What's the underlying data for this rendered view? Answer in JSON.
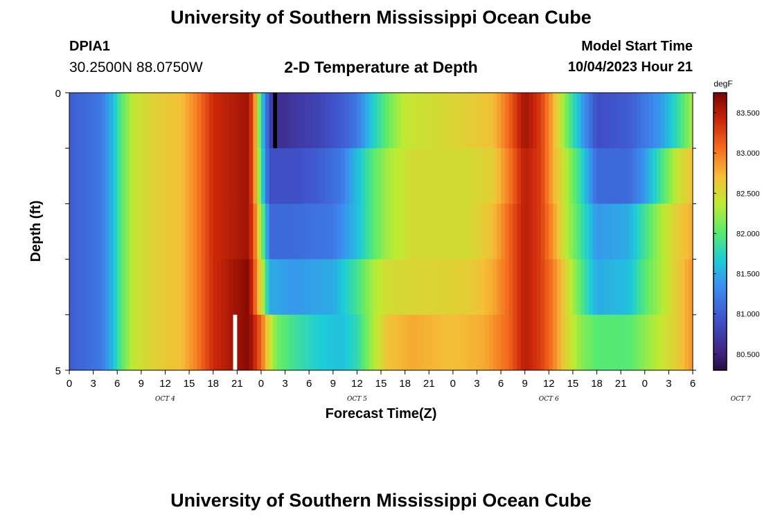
{
  "header": {
    "title": "University of Southern Mississippi Ocean Cube",
    "station": {
      "name": "DPIA1",
      "coords": "30.2500N  88.0750W"
    },
    "model_start_label": "Model Start Time",
    "model_start_value": "10/04/2023 Hour 21"
  },
  "footer": {
    "title": "University of Southern Mississippi Ocean Cube"
  },
  "chart_data": {
    "type": "heatmap",
    "title": "2-D Temperature at Depth",
    "xlabel": "Forecast Time(Z)",
    "ylabel": "Depth (ft)",
    "x_tick_labels": [
      "0",
      "3",
      "6",
      "9",
      "12",
      "15",
      "18",
      "21",
      "0",
      "3",
      "6",
      "9",
      "12",
      "15",
      "18",
      "21",
      "0",
      "3",
      "6",
      "9",
      "12",
      "15",
      "18",
      "21",
      "0",
      "3",
      "6"
    ],
    "date_labels": [
      {
        "label": "OCT 4",
        "hour": 12
      },
      {
        "label": "OCT 5",
        "hour": 36
      },
      {
        "label": "OCT 6",
        "hour": 60
      },
      {
        "label": "OCT 7",
        "hour": 84
      }
    ],
    "x_range_hours": [
      0,
      78
    ],
    "y_tick_labels": [
      "0",
      "5"
    ],
    "ylim": [
      0,
      5
    ],
    "depth_levels": 5,
    "colorbar": {
      "unit": "degF",
      "min": 80.3,
      "max": 83.75,
      "tick_labels": [
        "80.500",
        "81.000",
        "81.500",
        "82.000",
        "82.500",
        "83.000",
        "83.500"
      ],
      "tick_values": [
        80.5,
        81.0,
        81.5,
        82.0,
        82.5,
        83.0,
        83.5
      ]
    },
    "temperature_keypoints": [
      {
        "depth": 0,
        "points": [
          [
            0,
            81.0
          ],
          [
            4,
            81.2
          ],
          [
            5.5,
            81.6
          ],
          [
            6.5,
            82.0
          ],
          [
            8,
            82.4
          ],
          [
            11,
            82.6
          ],
          [
            14,
            82.7
          ],
          [
            16,
            83.0
          ],
          [
            18,
            83.4
          ],
          [
            22.5,
            83.6
          ],
          [
            23.5,
            82.6
          ],
          [
            24,
            81.7
          ],
          [
            24.5,
            81.4
          ],
          [
            25,
            80.8
          ],
          [
            26.5,
            80.6
          ],
          [
            28,
            80.7
          ],
          [
            31,
            80.8
          ],
          [
            34,
            81.0
          ],
          [
            36,
            81.2
          ],
          [
            38,
            81.7
          ],
          [
            40,
            82.1
          ],
          [
            42,
            82.4
          ],
          [
            46,
            82.5
          ],
          [
            50,
            82.6
          ],
          [
            53,
            82.7
          ],
          [
            55,
            83.1
          ],
          [
            57,
            83.6
          ],
          [
            59,
            83.3
          ],
          [
            60.5,
            82.8
          ],
          [
            62,
            82.2
          ],
          [
            64,
            81.5
          ],
          [
            66,
            80.9
          ],
          [
            70,
            81.0
          ],
          [
            72,
            81.2
          ],
          [
            74,
            81.4
          ],
          [
            76,
            81.8
          ],
          [
            78,
            82.3
          ]
        ]
      },
      {
        "depth": 1,
        "points": [
          [
            0,
            81.0
          ],
          [
            4,
            81.2
          ],
          [
            5.5,
            81.6
          ],
          [
            6.5,
            82.0
          ],
          [
            8,
            82.4
          ],
          [
            11,
            82.6
          ],
          [
            14,
            82.7
          ],
          [
            16,
            83.0
          ],
          [
            18,
            83.4
          ],
          [
            22.5,
            83.6
          ],
          [
            23.5,
            82.6
          ],
          [
            24,
            81.9
          ],
          [
            24.5,
            81.4
          ],
          [
            25,
            80.9
          ],
          [
            28,
            80.9
          ],
          [
            31,
            81.0
          ],
          [
            34,
            81.2
          ],
          [
            36,
            81.6
          ],
          [
            38,
            82.0
          ],
          [
            40,
            82.3
          ],
          [
            43,
            82.5
          ],
          [
            50,
            82.5
          ],
          [
            53,
            82.6
          ],
          [
            55,
            83.0
          ],
          [
            57,
            83.5
          ],
          [
            59,
            83.3
          ],
          [
            60.5,
            82.8
          ],
          [
            62,
            82.4
          ],
          [
            64,
            81.8
          ],
          [
            66,
            81.1
          ],
          [
            70,
            81.1
          ],
          [
            72,
            81.4
          ],
          [
            74,
            81.9
          ],
          [
            76,
            82.4
          ],
          [
            78,
            82.7
          ]
        ]
      },
      {
        "depth": 2,
        "points": [
          [
            0,
            81.0
          ],
          [
            4,
            81.2
          ],
          [
            5.5,
            81.6
          ],
          [
            6.5,
            82.0
          ],
          [
            8,
            82.4
          ],
          [
            11,
            82.6
          ],
          [
            14,
            82.7
          ],
          [
            16,
            83.0
          ],
          [
            18,
            83.4
          ],
          [
            22.5,
            83.6
          ],
          [
            23.5,
            82.8
          ],
          [
            24,
            82.2
          ],
          [
            24.5,
            81.8
          ],
          [
            25,
            81.1
          ],
          [
            28,
            81.1
          ],
          [
            33,
            81.2
          ],
          [
            36,
            81.6
          ],
          [
            38,
            82.0
          ],
          [
            40,
            82.3
          ],
          [
            43,
            82.5
          ],
          [
            50,
            82.5
          ],
          [
            53,
            82.7
          ],
          [
            55,
            83.1
          ],
          [
            57,
            83.5
          ],
          [
            59,
            83.3
          ],
          [
            60.5,
            82.9
          ],
          [
            62,
            82.4
          ],
          [
            64,
            81.9
          ],
          [
            66,
            81.4
          ],
          [
            70,
            81.5
          ],
          [
            72,
            81.9
          ],
          [
            74,
            82.3
          ],
          [
            76,
            82.6
          ],
          [
            78,
            82.8
          ]
        ]
      },
      {
        "depth": 3,
        "points": [
          [
            0,
            81.0
          ],
          [
            4,
            81.2
          ],
          [
            5.5,
            81.6
          ],
          [
            6.5,
            82.0
          ],
          [
            8,
            82.4
          ],
          [
            11,
            82.6
          ],
          [
            14,
            82.7
          ],
          [
            16,
            83.0
          ],
          [
            18,
            83.4
          ],
          [
            22.5,
            83.7
          ],
          [
            23.5,
            82.9
          ],
          [
            24.5,
            82.1
          ],
          [
            25,
            81.5
          ],
          [
            28,
            81.4
          ],
          [
            33,
            81.5
          ],
          [
            36,
            81.9
          ],
          [
            38,
            82.3
          ],
          [
            40,
            82.5
          ],
          [
            50,
            82.6
          ],
          [
            53,
            82.8
          ],
          [
            55,
            83.1
          ],
          [
            57,
            83.5
          ],
          [
            59,
            83.3
          ],
          [
            60.5,
            83.0
          ],
          [
            62,
            82.6
          ],
          [
            64,
            82.0
          ],
          [
            66,
            81.5
          ],
          [
            70,
            81.6
          ],
          [
            72,
            82.0
          ],
          [
            74,
            82.3
          ],
          [
            76,
            82.6
          ],
          [
            78,
            82.9
          ]
        ]
      },
      {
        "depth": 4,
        "points": [
          [
            0,
            81.0
          ],
          [
            4,
            81.2
          ],
          [
            5.5,
            81.6
          ],
          [
            6.5,
            82.0
          ],
          [
            8,
            82.4
          ],
          [
            11,
            82.6
          ],
          [
            14,
            82.7
          ],
          [
            16,
            83.0
          ],
          [
            18,
            83.4
          ],
          [
            22.5,
            83.7
          ],
          [
            24,
            83.1
          ],
          [
            25,
            82.5
          ],
          [
            26,
            82.1
          ],
          [
            28,
            81.9
          ],
          [
            31,
            81.7
          ],
          [
            34,
            81.6
          ],
          [
            36,
            81.8
          ],
          [
            38,
            82.3
          ],
          [
            40,
            82.7
          ],
          [
            43,
            82.8
          ],
          [
            48,
            82.7
          ],
          [
            52,
            82.8
          ],
          [
            55,
            83.1
          ],
          [
            57,
            83.5
          ],
          [
            59,
            83.3
          ],
          [
            60.5,
            83.0
          ],
          [
            62,
            82.6
          ],
          [
            64,
            82.2
          ],
          [
            66,
            82.0
          ],
          [
            70,
            82.0
          ],
          [
            72,
            82.2
          ],
          [
            74,
            82.4
          ],
          [
            76,
            82.6
          ],
          [
            78,
            82.9
          ]
        ]
      }
    ],
    "missing_cells": [
      {
        "depth": 0,
        "x": [
          25.5,
          26.0
        ],
        "color": "#000000"
      },
      {
        "depth": 4,
        "x": [
          20.5,
          21.0
        ],
        "color": "#ffffff"
      }
    ]
  }
}
